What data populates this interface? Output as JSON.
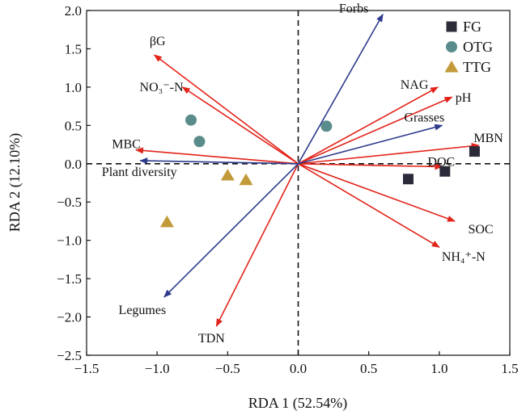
{
  "chart_data": {
    "type": "scatter",
    "subtype": "rda-biplot",
    "xlabel": "RDA 1 (52.54%)",
    "ylabel": "RDA 2 (12.10%)",
    "xlim": [
      -1.5,
      1.5
    ],
    "ylim": [
      -2.5,
      2.0
    ],
    "xticks": [
      "−1.5",
      "−1.0",
      "−0.5",
      "0.0",
      "0.5",
      "1.0",
      "1.5"
    ],
    "yticks": [
      "−2.5",
      "−2.0",
      "−1.5",
      "−1.0",
      "−0.5",
      "0.0",
      "0.5",
      "1.0",
      "1.5",
      "2.0"
    ],
    "grid": false,
    "zero_lines": "dashed",
    "legend_position": "top-right",
    "colors": {
      "environment_arrow": "#e2231a",
      "plant_arrow": "#2e3a8c",
      "FG": "#2b2b3a",
      "OTG": "#5b8c8c",
      "TTG": "#c39a3a"
    },
    "series": [
      {
        "name": "FG",
        "marker": "square",
        "color": "#2b2b3a",
        "points": [
          [
            0.78,
            -0.2
          ],
          [
            1.04,
            -0.1
          ],
          [
            1.25,
            0.16
          ]
        ]
      },
      {
        "name": "OTG",
        "marker": "circle",
        "color": "#5b8c8c",
        "points": [
          [
            -0.76,
            0.57
          ],
          [
            -0.7,
            0.29
          ],
          [
            0.2,
            0.49
          ]
        ]
      },
      {
        "name": "TTG",
        "marker": "triangle",
        "color": "#c39a3a",
        "points": [
          [
            -0.5,
            -0.15
          ],
          [
            -0.37,
            -0.21
          ],
          [
            -0.93,
            -0.76
          ]
        ]
      }
    ],
    "arrows": [
      {
        "label": "βG",
        "x": -1.02,
        "y": 1.42,
        "group": "environment"
      },
      {
        "label": "NO₃⁻-N",
        "x": -0.82,
        "y": 1.0,
        "group": "environment"
      },
      {
        "label": "MBC",
        "x": -1.15,
        "y": 0.18,
        "group": "environment"
      },
      {
        "label": "NAG",
        "x": 0.99,
        "y": 1.0,
        "group": "environment"
      },
      {
        "label": "pH",
        "x": 1.09,
        "y": 0.87,
        "group": "environment"
      },
      {
        "label": "MBN",
        "x": 1.28,
        "y": 0.24,
        "group": "environment"
      },
      {
        "label": "DOC",
        "x": 1.02,
        "y": -0.04,
        "group": "environment"
      },
      {
        "label": "SOC",
        "x": 1.11,
        "y": -0.75,
        "group": "environment"
      },
      {
        "label": "NH₄⁺-N",
        "x": 1.0,
        "y": -1.09,
        "group": "environment"
      },
      {
        "label": "TDN",
        "x": -0.58,
        "y": -2.12,
        "group": "environment"
      },
      {
        "label": "Forbs",
        "x": 0.6,
        "y": 1.95,
        "group": "plant"
      },
      {
        "label": "Grasses",
        "x": 1.02,
        "y": 0.5,
        "group": "plant"
      },
      {
        "label": "Plant diversity",
        "x": -1.12,
        "y": 0.04,
        "group": "plant"
      },
      {
        "label": "Legumes",
        "x": -0.95,
        "y": -1.74,
        "group": "plant"
      }
    ]
  }
}
